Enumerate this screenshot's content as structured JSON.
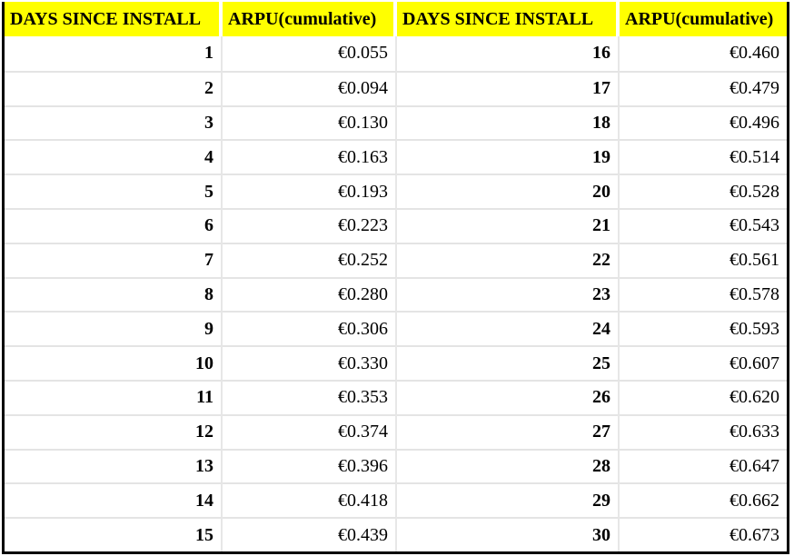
{
  "table": {
    "headers": [
      "DAYS SINCE INSTALL",
      "ARPU(cumulative)",
      "DAYS SINCE INSTALL",
      "ARPU(cumulative)"
    ],
    "rows": [
      {
        "day_left": "1",
        "arpu_left": "€0.055",
        "day_right": "16",
        "arpu_right": "€0.460"
      },
      {
        "day_left": "2",
        "arpu_left": "€0.094",
        "day_right": "17",
        "arpu_right": "€0.479"
      },
      {
        "day_left": "3",
        "arpu_left": "€0.130",
        "day_right": "18",
        "arpu_right": "€0.496"
      },
      {
        "day_left": "4",
        "arpu_left": "€0.163",
        "day_right": "19",
        "arpu_right": "€0.514"
      },
      {
        "day_left": "5",
        "arpu_left": "€0.193",
        "day_right": "20",
        "arpu_right": "€0.528"
      },
      {
        "day_left": "6",
        "arpu_left": "€0.223",
        "day_right": "21",
        "arpu_right": "€0.543"
      },
      {
        "day_left": "7",
        "arpu_left": "€0.252",
        "day_right": "22",
        "arpu_right": "€0.561"
      },
      {
        "day_left": "8",
        "arpu_left": "€0.280",
        "day_right": "23",
        "arpu_right": "€0.578"
      },
      {
        "day_left": "9",
        "arpu_left": "€0.306",
        "day_right": "24",
        "arpu_right": "€0.593"
      },
      {
        "day_left": "10",
        "arpu_left": "€0.330",
        "day_right": "25",
        "arpu_right": "€0.607"
      },
      {
        "day_left": "11",
        "arpu_left": "€0.353",
        "day_right": "26",
        "arpu_right": "€0.620"
      },
      {
        "day_left": "12",
        "arpu_left": "€0.374",
        "day_right": "27",
        "arpu_right": "€0.633"
      },
      {
        "day_left": "13",
        "arpu_left": "€0.396",
        "day_right": "28",
        "arpu_right": "€0.647"
      },
      {
        "day_left": "14",
        "arpu_left": "€0.418",
        "day_right": "29",
        "arpu_right": "€0.662"
      },
      {
        "day_left": "15",
        "arpu_left": "€0.439",
        "day_right": "30",
        "arpu_right": "€0.673"
      }
    ]
  },
  "colors": {
    "header_bg": "#FFFF00",
    "header_text": "#000000",
    "gridline": "#E4E4E4",
    "outer_border": "#000000",
    "currency_symbol": "€"
  },
  "chart_data": {
    "type": "table",
    "title": "ARPU (cumulative) by days since install",
    "columns": [
      "DAYS SINCE INSTALL",
      "ARPU(cumulative)"
    ],
    "currency": "EUR",
    "days": [
      1,
      2,
      3,
      4,
      5,
      6,
      7,
      8,
      9,
      10,
      11,
      12,
      13,
      14,
      15,
      16,
      17,
      18,
      19,
      20,
      21,
      22,
      23,
      24,
      25,
      26,
      27,
      28,
      29,
      30
    ],
    "arpu_cumulative_eur": [
      0.055,
      0.094,
      0.13,
      0.163,
      0.193,
      0.223,
      0.252,
      0.28,
      0.306,
      0.33,
      0.353,
      0.374,
      0.396,
      0.418,
      0.439,
      0.46,
      0.479,
      0.496,
      0.514,
      0.528,
      0.543,
      0.561,
      0.578,
      0.593,
      0.607,
      0.62,
      0.633,
      0.647,
      0.662,
      0.673
    ]
  }
}
